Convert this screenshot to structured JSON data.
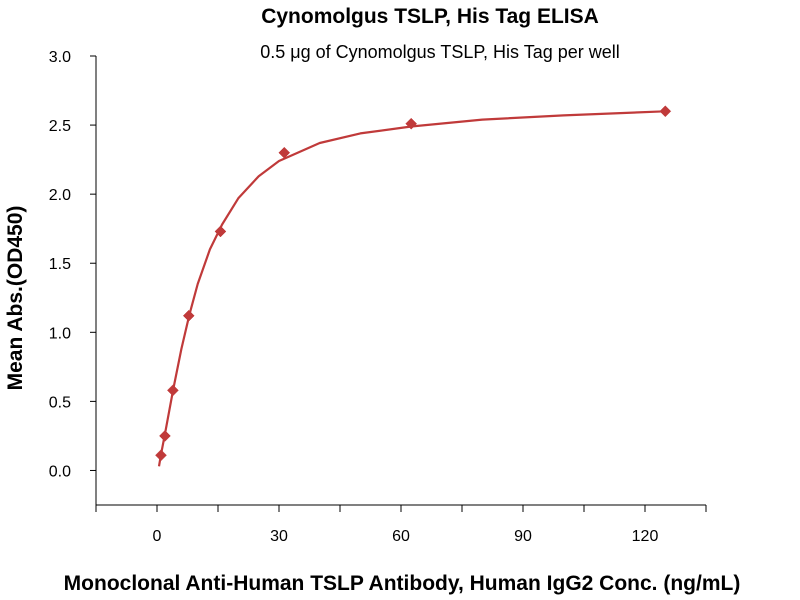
{
  "chart_data": {
    "type": "scatter",
    "title": "Cynomolgus TSLP, His Tag ELISA",
    "subtitle": "0.5 μg of Cynomolgus TSLP, His Tag per well",
    "xlabel": "Monoclonal Anti-Human TSLP Antibody, Human IgG2 Conc. (ng/mL)",
    "ylabel": "Mean Abs.(OD450)",
    "xlim": [
      -15,
      135
    ],
    "ylim": [
      -0.25,
      3.0
    ],
    "x_ticks": [
      "0",
      "30",
      "60",
      "90",
      "120"
    ],
    "y_ticks": [
      "0.0",
      "0.5",
      "1.0",
      "1.5",
      "2.0",
      "2.5",
      "3.0"
    ],
    "grid": false,
    "series": [
      {
        "color": "#c03a3a",
        "marker": "diamond",
        "points": [
          {
            "x": 0.98,
            "y": 0.11
          },
          {
            "x": 1.95,
            "y": 0.25
          },
          {
            "x": 3.91,
            "y": 0.58
          },
          {
            "x": 7.81,
            "y": 1.12
          },
          {
            "x": 15.6,
            "y": 1.73
          },
          {
            "x": 31.3,
            "y": 2.3
          },
          {
            "x": 62.5,
            "y": 2.51
          },
          {
            "x": 125,
            "y": 2.6
          }
        ],
        "fit_curve": [
          {
            "x": 0.5,
            "y": 0.03
          },
          {
            "x": 1,
            "y": 0.12
          },
          {
            "x": 2,
            "y": 0.27
          },
          {
            "x": 3,
            "y": 0.43
          },
          {
            "x": 4,
            "y": 0.59
          },
          {
            "x": 6,
            "y": 0.88
          },
          {
            "x": 8,
            "y": 1.13
          },
          {
            "x": 10,
            "y": 1.35
          },
          {
            "x": 13,
            "y": 1.6
          },
          {
            "x": 16,
            "y": 1.78
          },
          {
            "x": 20,
            "y": 1.97
          },
          {
            "x": 25,
            "y": 2.13
          },
          {
            "x": 30,
            "y": 2.24
          },
          {
            "x": 40,
            "y": 2.37
          },
          {
            "x": 50,
            "y": 2.44
          },
          {
            "x": 62.5,
            "y": 2.49
          },
          {
            "x": 80,
            "y": 2.54
          },
          {
            "x": 100,
            "y": 2.57
          },
          {
            "x": 125,
            "y": 2.6
          }
        ]
      }
    ]
  }
}
